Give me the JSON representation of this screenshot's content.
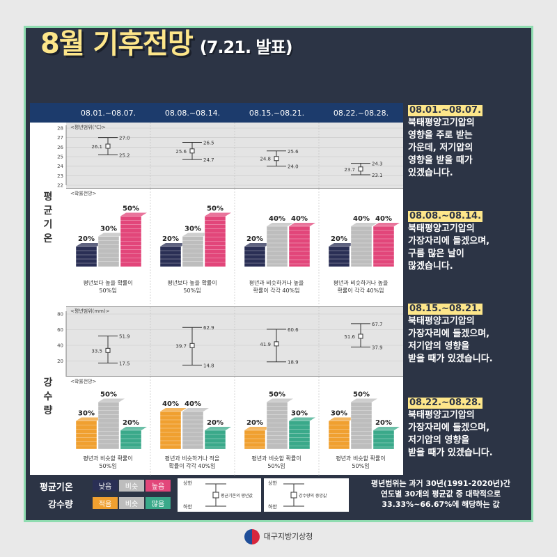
{
  "title": {
    "main": "8월 기후전망",
    "sub": "(7.21. 발표)"
  },
  "periods": [
    "08.01.~08.07.",
    "08.08.~08.14.",
    "08.15.~08.21.",
    "08.22.~08.28."
  ],
  "temperature": {
    "side_label": "평균기온",
    "range_label": "<평년범위(℃)>",
    "prob_label": "<확률전망>",
    "axis_ticks": [
      28,
      27,
      26,
      25,
      24,
      23,
      22
    ],
    "ranges": [
      {
        "low": 25.2,
        "mid": 26.1,
        "high": 27.0
      },
      {
        "low": 24.7,
        "mid": 25.6,
        "high": 26.5
      },
      {
        "low": 24.0,
        "mid": 24.8,
        "high": 25.6
      },
      {
        "low": 23.1,
        "mid": 23.7,
        "high": 24.3
      }
    ],
    "probabilities": [
      {
        "low": "20%",
        "normal": "30%",
        "high": "50%",
        "low_v": 20,
        "normal_v": 30,
        "high_v": 50,
        "caption": [
          "평년보다 높을 확률이",
          "50%임"
        ]
      },
      {
        "low": "20%",
        "normal": "30%",
        "high": "50%",
        "low_v": 20,
        "normal_v": 30,
        "high_v": 50,
        "caption": [
          "평년보다 높을 확률이",
          "50%임"
        ]
      },
      {
        "low": "20%",
        "normal": "40%",
        "high": "40%",
        "low_v": 20,
        "normal_v": 40,
        "high_v": 40,
        "caption": [
          "평년과 비슷하거나 높을",
          "확률이 각각 40%임"
        ]
      },
      {
        "low": "20%",
        "normal": "40%",
        "high": "40%",
        "low_v": 20,
        "normal_v": 40,
        "high_v": 40,
        "caption": [
          "평년과 비슷하거나 높을",
          "확률이 각각 40%임"
        ]
      }
    ]
  },
  "precipitation": {
    "side_label": "강수량",
    "range_label": "<평년범위(mm)>",
    "prob_label": "<확률전망>",
    "axis_ticks": [
      80,
      60,
      40,
      20
    ],
    "ranges": [
      {
        "low": 17.5,
        "mid": 33.5,
        "high": 51.9
      },
      {
        "low": 14.8,
        "mid": 39.7,
        "high": 62.9
      },
      {
        "low": 18.9,
        "mid": 41.9,
        "high": 60.6
      },
      {
        "low": 37.9,
        "mid": 51.6,
        "high": 67.7
      }
    ],
    "probabilities": [
      {
        "low": "30%",
        "normal": "50%",
        "high": "20%",
        "low_v": 30,
        "normal_v": 50,
        "high_v": 20,
        "caption": [
          "평년과 비슷할 확률이",
          "50%임"
        ]
      },
      {
        "low": "40%",
        "normal": "40%",
        "high": "20%",
        "low_v": 40,
        "normal_v": 40,
        "high_v": 20,
        "caption": [
          "평년과 비슷하거나 적을",
          "확률이 각각 40%임"
        ]
      },
      {
        "low": "20%",
        "normal": "50%",
        "high": "30%",
        "low_v": 20,
        "normal_v": 50,
        "high_v": 30,
        "caption": [
          "평년과 비슷할 확률이",
          "50%임"
        ]
      },
      {
        "low": "30%",
        "normal": "50%",
        "high": "20%",
        "low_v": 30,
        "normal_v": 50,
        "high_v": 20,
        "caption": [
          "평년과 비슷할 확률이",
          "50%임"
        ]
      }
    ]
  },
  "notes": [
    {
      "date": "08.01.~08.07.",
      "lines": [
        "북태평양고기압의",
        "영향을 주로 받는",
        "가운데, 저기압의",
        "영향을 받을 때가",
        "있겠습니다."
      ]
    },
    {
      "date": "08.08.~08.14.",
      "lines": [
        "북태평양고기압의",
        "가장자리에 들겠으며,",
        "구름 많은 날이",
        "많겠습니다."
      ]
    },
    {
      "date": "08.15.~08.21.",
      "lines": [
        "북태평양고기압의",
        "가장자리에 들겠으며,",
        "저기압의 영향을",
        "받을 때가 있겠습니다."
      ]
    },
    {
      "date": "08.22.~08.28.",
      "lines": [
        "북태평양고기압의",
        "가장자리에 들겠으며,",
        "저기압의 영향을",
        "받을 때가 있겠습니다."
      ]
    }
  ],
  "legend": {
    "temp_label": "평균기온",
    "temp_chips": [
      "낮음",
      "비슷",
      "높음"
    ],
    "precip_label": "강수량",
    "precip_chips": [
      "적음",
      "비슷",
      "많음"
    ],
    "upper": "상한",
    "lower": "하한",
    "temp_mid": "평균기온의 평년값",
    "precip_mid": "강수량의 중앙값",
    "note": [
      "평년범위는 과거 30년(1991-2020년)간",
      "연도별 30개의 평균값 중 대략적으로",
      "33.33%~66.67%에 해당하는 값"
    ]
  },
  "footer": {
    "org": "대구지방기상청"
  },
  "colors": {
    "temp_low": "#2a2f55",
    "temp_normal": "#bdbdbd",
    "temp_high": "#e2467a",
    "precip_low": "#f0a030",
    "precip_normal": "#bdbdbd",
    "precip_high": "#3aa98a",
    "header": "#1c3b6c",
    "panel": "#2c3445",
    "accent": "#fde68a"
  }
}
